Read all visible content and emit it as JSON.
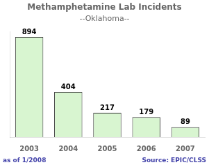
{
  "chart_data": {
    "type": "bar",
    "title": "Methamphetamine Lab Incidents",
    "subtitle": "--Oklahoma--",
    "categories": [
      "2003",
      "2004",
      "2005",
      "2006",
      "2007"
    ],
    "values": [
      894,
      404,
      217,
      179,
      89
    ],
    "color": "#d8f5d0",
    "ylim": [
      0,
      940
    ],
    "grid": false,
    "data_labels": true,
    "tick_labels": "x",
    "annotations": [
      "as of 1/2008",
      "Source: EPIC/CLSS"
    ]
  }
}
